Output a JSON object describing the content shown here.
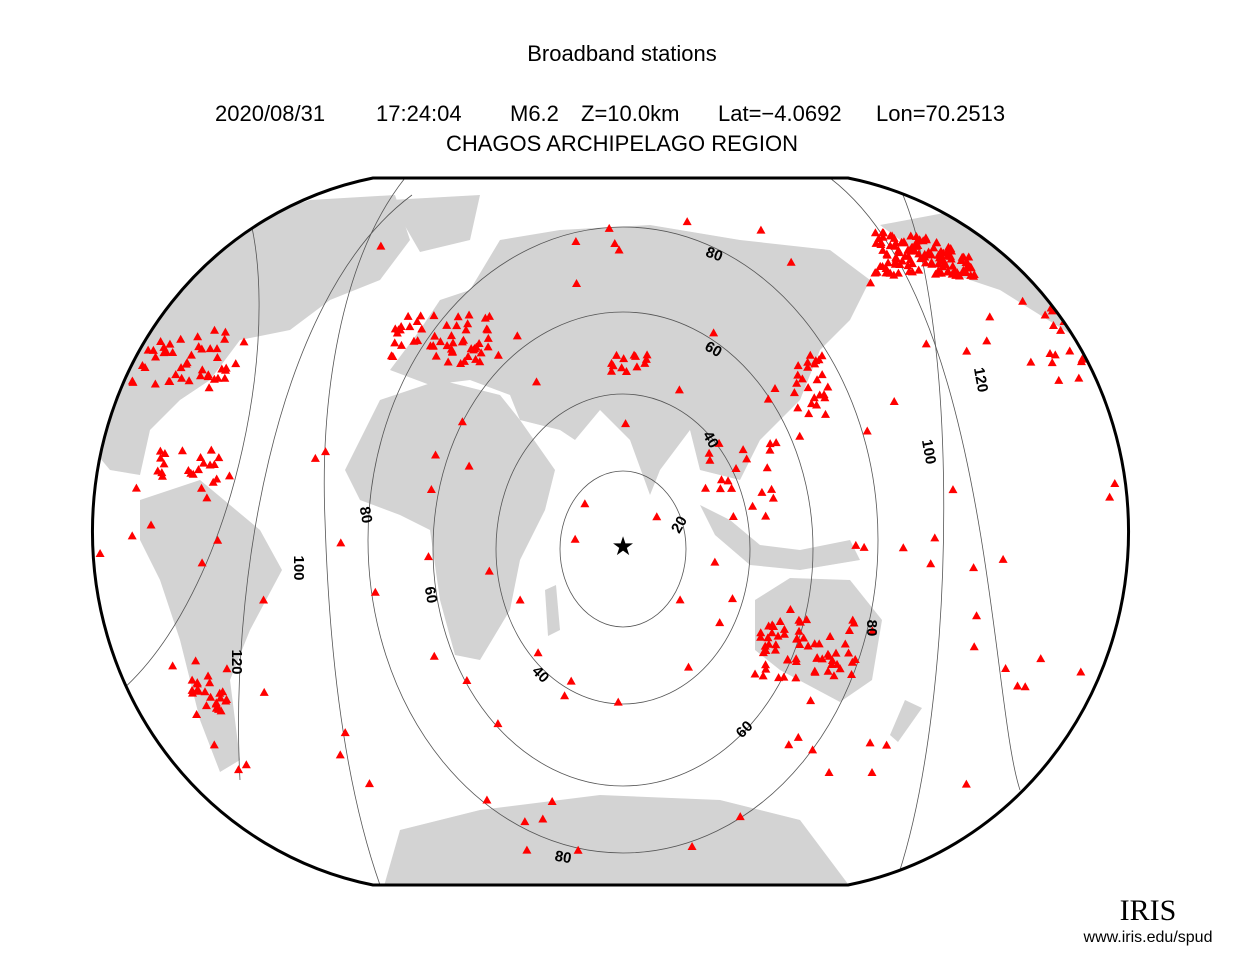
{
  "title": "Broadband stations",
  "event": {
    "date": "2020/08/31",
    "time": "17:24:04",
    "magnitude": "M6.2",
    "depth": "Z=10.0km",
    "lat": "Lat=−4.0692",
    "lon": "Lon=70.2513"
  },
  "region": "CHAGOS ARCHIPELAGO REGION",
  "distance_labels": [
    "20",
    "40",
    "40",
    "60",
    "60",
    "60",
    "80",
    "80",
    "80",
    "80",
    "100",
    "100",
    "120",
    "120"
  ],
  "logo": {
    "name": "IRIS",
    "url": "www.iris.edu/spud"
  }
}
